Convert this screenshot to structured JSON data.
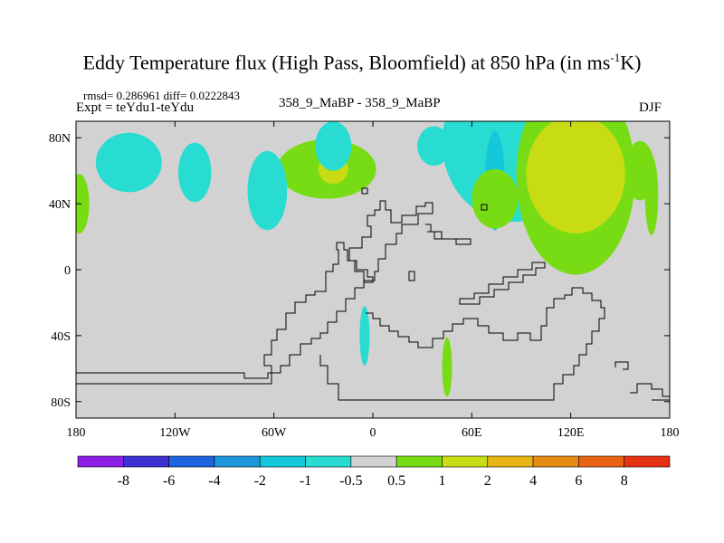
{
  "title": {
    "main": "Eddy Temperature flux (High Pass, Bloomfield) at 850 hPa (in ms",
    "superscript": "-1",
    "tail": "K)"
  },
  "stats_line": "rmsd= 0.286961 diff= 0.0222843",
  "expt_line": "Expt = teYdu1-teYdu",
  "run_pair": "358_9_MaBP - 358_9_MaBP",
  "season": "DJF",
  "chart_data": {
    "type": "heatmap",
    "projection": "cylindrical-equidistant",
    "field": "eddy temperature flux difference",
    "xlim": [
      -180,
      180
    ],
    "ylim": [
      -90,
      90
    ],
    "x_ticks": [
      -180,
      -120,
      -60,
      0,
      60,
      120,
      180
    ],
    "x_tick_labels": [
      "180",
      "120W",
      "60W",
      "0",
      "60E",
      "120E",
      "180"
    ],
    "y_ticks": [
      80,
      40,
      0,
      -40,
      -80
    ],
    "y_tick_labels": [
      "80N",
      "40N",
      "0",
      "40S",
      "80S"
    ],
    "colorbar": {
      "levels": [
        "-8",
        "-6",
        "-4",
        "-2",
        "-1",
        "-0.5",
        "0.5",
        "1",
        "2",
        "4",
        "6",
        "8"
      ],
      "colors": [
        "#8c1ee6",
        "#3c32d2",
        "#1e64dc",
        "#1e96dc",
        "#14c8dc",
        "#28dcd2",
        "#d2d2d2",
        "#78dc14",
        "#c8dc14",
        "#e6b414",
        "#e68c14",
        "#e66414",
        "#e63214"
      ]
    },
    "background_color": "#d2d2d2",
    "regions": [
      {
        "name": "arctic-positive",
        "lon": -28,
        "lat": 61,
        "rlon": 30,
        "rlat": 3,
        "color": "#78dc14"
      },
      {
        "name": "arctic-core",
        "lon": -24,
        "lat": 61,
        "rlon": 9,
        "rlat": 1.5,
        "color": "#c8dc14"
      },
      {
        "name": "west-pacific-positive",
        "lon": -178,
        "lat": 40,
        "rlon": 6,
        "rlat": 3,
        "color": "#78dc14"
      },
      {
        "name": "west-pacific-negative",
        "lon": -148,
        "lat": 65,
        "rlon": 20,
        "rlat": 3,
        "color": "#28dcd2"
      },
      {
        "name": "north-pacific-negative",
        "lon": -108,
        "lat": 59,
        "rlon": 10,
        "rlat": 3,
        "color": "#28dcd2"
      },
      {
        "name": "north-america-negative",
        "lon": -64,
        "lat": 48,
        "rlon": 12,
        "rlat": 4,
        "color": "#28dcd2"
      },
      {
        "name": "greenland-negative",
        "lon": -24,
        "lat": 75,
        "rlon": 11,
        "rlat": 2.5,
        "color": "#28dcd2"
      },
      {
        "name": "atlantic-negative",
        "lon": 37,
        "lat": 75,
        "rlon": 10,
        "rlat": 2,
        "color": "#28dcd2"
      },
      {
        "name": "asia-negative",
        "lon": 85,
        "lat": 77,
        "rlon": 43,
        "rlat": 8,
        "color": "#28dcd2"
      },
      {
        "name": "asia-negative-core",
        "lon": 74,
        "lat": 54,
        "rlon": 6,
        "rlat": 5,
        "color": "#14c8dc"
      },
      {
        "name": "asia-positive",
        "lon": 123,
        "lat": 57,
        "rlon": 36,
        "rlat": 10,
        "color": "#78dc14"
      },
      {
        "name": "asia-positive-core",
        "lon": 123,
        "lat": 58,
        "rlon": 30,
        "rlat": 6,
        "color": "#c8dc14"
      },
      {
        "name": "north-pacific-east-positive",
        "lon": 162,
        "lat": 60,
        "rlon": 9,
        "rlat": 3,
        "color": "#78dc14"
      },
      {
        "name": "pacific-island-positive",
        "lon": 169,
        "lat": 45,
        "rlon": 4,
        "rlat": 4,
        "color": "#78dc14"
      },
      {
        "name": "south-atlantic-negative",
        "lon": -5,
        "lat": -40,
        "rlon": 3,
        "rlat": 3,
        "color": "#28dcd2"
      },
      {
        "name": "southern-ocean-positive",
        "lon": 45,
        "lat": -59,
        "rlon": 3,
        "rlat": 3,
        "color": "#78dc14"
      },
      {
        "name": "southern-indian-positive",
        "lon": 74,
        "lat": 43,
        "rlon": 14,
        "rlat": 3,
        "color": "#78dc14"
      }
    ]
  }
}
